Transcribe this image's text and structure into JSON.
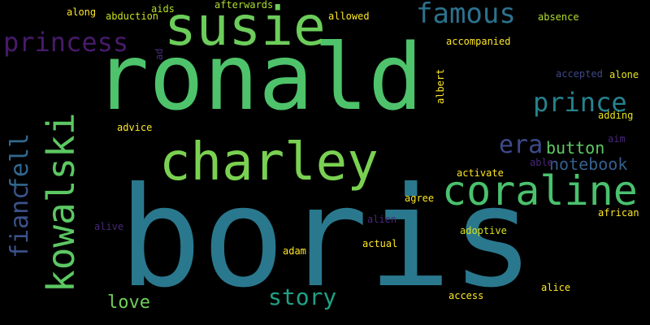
{
  "words": [
    {
      "text": "boris",
      "color": "#2a788e"
    },
    {
      "text": "ronald",
      "color": "#4ec36b"
    },
    {
      "text": "susie",
      "color": "#6ccd5a"
    },
    {
      "text": "charley",
      "color": "#7ad151"
    },
    {
      "text": "coraline",
      "color": "#4ac16d"
    },
    {
      "text": "kowalski",
      "color": "#5cc863"
    },
    {
      "text": "famous",
      "color": "#2c728e"
    },
    {
      "text": "princess",
      "color": "#481a6c"
    },
    {
      "text": "prince",
      "color": "#26828e"
    },
    {
      "text": "fell",
      "color": "#31688e"
    },
    {
      "text": "fianc",
      "color": "#3b528b"
    },
    {
      "text": "era",
      "color": "#3e4989"
    },
    {
      "text": "story",
      "color": "#1fa187"
    },
    {
      "text": "button",
      "color": "#5ec962"
    },
    {
      "text": "notebook",
      "color": "#35608d"
    },
    {
      "text": "love",
      "color": "#6ece58"
    },
    {
      "text": "along",
      "color": "#fde725"
    },
    {
      "text": "aids",
      "color": "#b5de2b"
    },
    {
      "text": "afterwards",
      "color": "#addc30"
    },
    {
      "text": "accompanied",
      "color": "#fde725"
    },
    {
      "text": "allowed",
      "color": "#fde725"
    },
    {
      "text": "albert",
      "color": "#fde725"
    },
    {
      "text": "adding",
      "color": "#e5e419"
    },
    {
      "text": "advice",
      "color": "#fde725"
    },
    {
      "text": "activate",
      "color": "#fde725"
    },
    {
      "text": "agree",
      "color": "#fde725"
    },
    {
      "text": "african",
      "color": "#fde725"
    },
    {
      "text": "actual",
      "color": "#fde725"
    },
    {
      "text": "adam",
      "color": "#fde725"
    },
    {
      "text": "alice",
      "color": "#fde725"
    },
    {
      "text": "access",
      "color": "#fde725"
    },
    {
      "text": "abduction",
      "color": "#c8e020"
    },
    {
      "text": "accepted",
      "color": "#3e4989"
    },
    {
      "text": "alien",
      "color": "#482878"
    },
    {
      "text": "alive",
      "color": "#482878"
    },
    {
      "text": "able",
      "color": "#482878"
    },
    {
      "text": "aim",
      "color": "#482878"
    },
    {
      "text": "ad",
      "color": "#472d7b"
    },
    {
      "text": "absence",
      "color": "#b5de2b"
    },
    {
      "text": "alone",
      "color": "#e5e419"
    },
    {
      "text": "adoptive",
      "color": "#d8e219"
    }
  ]
}
